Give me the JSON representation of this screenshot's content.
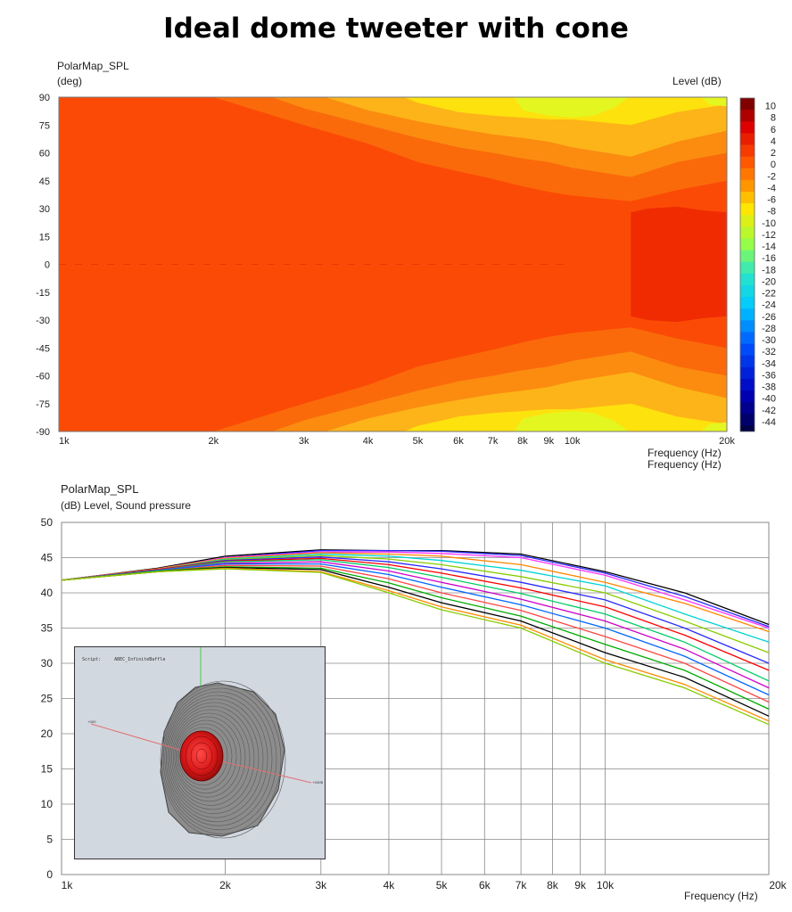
{
  "page_title": "Ideal dome tweeter with cone",
  "colors": {
    "band_0": "#fb4a06",
    "band_m2": "#fa6a0a",
    "band_m4": "#fb8c10",
    "band_m6": "#fdb418",
    "band_m8": "#fde20d",
    "band_m10": "#e4f61f",
    "band_p2": "#f02b02"
  },
  "chart_data": [
    {
      "type": "heatmap",
      "title": "PolarMap_SPL",
      "ylabel_unit": "(deg)",
      "colorbar_label": "Level  (dB)",
      "xlabel": "Frequency  (Hz)",
      "xlabel_overlap": "Frequency  (Hz)",
      "x_scale": "log",
      "xlim": [
        1000,
        20000
      ],
      "ylim": [
        -90,
        90
      ],
      "x_ticks": [
        {
          "v": 1000,
          "l": "1k"
        },
        {
          "v": 2000,
          "l": "2k"
        },
        {
          "v": 3000,
          "l": "3k"
        },
        {
          "v": 4000,
          "l": "4k"
        },
        {
          "v": 5000,
          "l": "5k"
        },
        {
          "v": 6000,
          "l": "6k"
        },
        {
          "v": 7000,
          "l": "7k"
        },
        {
          "v": 8000,
          "l": "8k"
        },
        {
          "v": 9000,
          "l": "9k"
        },
        {
          "v": 10000,
          "l": "10k"
        },
        {
          "v": 20000,
          "l": "20k"
        }
      ],
      "y_ticks": [
        90,
        75,
        60,
        45,
        30,
        15,
        0,
        -15,
        -30,
        -45,
        -60,
        -75,
        -90
      ],
      "colorbar_ticks": [
        10,
        8,
        6,
        4,
        2,
        0,
        -2,
        -4,
        -6,
        -8,
        -10,
        -12,
        -14,
        -16,
        -18,
        -20,
        -22,
        -24,
        -26,
        -28,
        -30,
        -32,
        -34,
        -36,
        -38,
        -40,
        -42,
        -44
      ],
      "contour_boundaries_abs_angle_deg": [
        {
          "level_dB": -2,
          "freq_hz": [
            2000,
            3000,
            4000,
            5000,
            6000,
            7000,
            8000,
            9000,
            10000,
            13000,
            16000,
            20000
          ],
          "angle_deg": [
            90,
            75,
            65,
            55,
            50,
            46,
            42,
            39,
            37,
            34,
            40,
            45
          ]
        },
        {
          "level_dB": -4,
          "freq_hz": [
            2600,
            3000,
            4000,
            5000,
            6000,
            7000,
            8000,
            9000,
            10000,
            13000,
            16000,
            20000
          ],
          "angle_deg": [
            90,
            84,
            75,
            68,
            63,
            60,
            57,
            55,
            52,
            47,
            55,
            60
          ]
        },
        {
          "level_dB": -6,
          "freq_hz": [
            3300,
            4000,
            5000,
            6000,
            7000,
            8000,
            9000,
            10000,
            13000,
            16000,
            20000
          ],
          "angle_deg": [
            90,
            83,
            77,
            73,
            70,
            68,
            66,
            63,
            58,
            66,
            72
          ]
        },
        {
          "level_dB": -8,
          "freq_hz": [
            4700,
            5000,
            6000,
            7000,
            8000,
            9000,
            10000,
            13000,
            16000,
            20000
          ],
          "angle_deg": [
            90,
            87,
            82,
            80,
            79,
            78,
            78,
            75,
            82,
            86
          ]
        },
        {
          "level_dB": -10,
          "freq_hz": [
            7700,
            8000,
            9000,
            10000,
            11000,
            12000,
            12900
          ],
          "angle_deg": [
            90,
            83,
            80,
            79,
            80,
            84,
            90
          ]
        },
        {
          "level_dB": -10,
          "freq_hz": [
            17800,
            18500,
            20000
          ],
          "angle_deg": [
            90,
            86,
            85
          ]
        }
      ],
      "positive_region": {
        "level_dB": 2,
        "freq_hz": [
          13000,
          14000,
          16000,
          18000,
          20000
        ],
        "angle_deg": [
          28,
          30,
          31,
          29,
          28
        ]
      }
    },
    {
      "type": "line",
      "title": "PolarMap_SPL",
      "ylabel": "(dB)  Level, Sound pressure",
      "xlabel": "Frequency  (Hz)",
      "x_scale": "log",
      "xlim": [
        1000,
        20000
      ],
      "ylim": [
        0,
        50
      ],
      "y_ticks": [
        0,
        5,
        10,
        15,
        20,
        25,
        30,
        35,
        40,
        45,
        50
      ],
      "x_ticks": [
        {
          "v": 1000,
          "l": "1k"
        },
        {
          "v": 2000,
          "l": "2k"
        },
        {
          "v": 3000,
          "l": "3k"
        },
        {
          "v": 4000,
          "l": "4k"
        },
        {
          "v": 5000,
          "l": "5k"
        },
        {
          "v": 6000,
          "l": "6k"
        },
        {
          "v": 7000,
          "l": "7k"
        },
        {
          "v": 8000,
          "l": "8k"
        },
        {
          "v": 9000,
          "l": "9k"
        },
        {
          "v": 10000,
          "l": "10k"
        },
        {
          "v": 20000,
          "l": "20k"
        }
      ],
      "x": [
        1000,
        1500,
        2000,
        3000,
        4000,
        5000,
        7000,
        10000,
        14000,
        20000
      ],
      "series": [
        {
          "color": "#000000",
          "values": [
            41.8,
            43.5,
            45.2,
            46.1,
            46.0,
            46.0,
            45.5,
            43.0,
            40.0,
            35.5
          ]
        },
        {
          "color": "#2a2aff",
          "values": [
            41.8,
            43.4,
            45.0,
            46.0,
            46.0,
            45.9,
            45.3,
            42.8,
            39.5,
            35.2
          ]
        },
        {
          "color": "#ff33ff",
          "values": [
            41.8,
            43.4,
            45.0,
            45.8,
            45.8,
            45.6,
            45.0,
            42.5,
            39.0,
            35.0
          ]
        },
        {
          "color": "#ff8800",
          "values": [
            41.8,
            43.4,
            44.9,
            45.7,
            45.5,
            45.2,
            44.0,
            41.5,
            38.5,
            34.5
          ]
        },
        {
          "color": "#00d4d4",
          "values": [
            41.8,
            43.3,
            44.8,
            45.5,
            45.2,
            44.6,
            43.2,
            41.0,
            37.0,
            33.0
          ]
        },
        {
          "color": "#88cc00",
          "values": [
            41.8,
            43.3,
            44.7,
            45.3,
            44.8,
            44.0,
            42.3,
            40.0,
            36.0,
            31.5
          ]
        },
        {
          "color": "#2a2aff",
          "values": [
            41.8,
            43.3,
            44.6,
            45.1,
            44.4,
            43.4,
            41.5,
            39.0,
            35.0,
            30.0
          ]
        },
        {
          "color": "#ff0000",
          "values": [
            41.8,
            43.3,
            44.5,
            44.9,
            44.0,
            42.8,
            40.7,
            38.0,
            34.0,
            29.0
          ]
        },
        {
          "color": "#00cc66",
          "values": [
            41.8,
            43.2,
            44.4,
            44.7,
            43.6,
            42.2,
            39.9,
            37.0,
            33.0,
            27.5
          ]
        },
        {
          "color": "#cc00cc",
          "values": [
            41.8,
            43.2,
            44.2,
            44.4,
            43.1,
            41.5,
            39.1,
            36.0,
            32.0,
            26.5
          ]
        },
        {
          "color": "#0066ff",
          "values": [
            41.8,
            43.2,
            44.1,
            44.1,
            42.6,
            40.8,
            38.3,
            35.0,
            31.0,
            25.5
          ]
        },
        {
          "color": "#ff4444",
          "values": [
            41.8,
            43.1,
            43.9,
            43.8,
            42.0,
            40.0,
            37.5,
            33.8,
            30.0,
            24.5
          ]
        },
        {
          "color": "#00aa00",
          "values": [
            41.8,
            43.1,
            43.7,
            43.5,
            41.4,
            39.3,
            36.7,
            32.7,
            29.0,
            23.5
          ]
        },
        {
          "color": "#000000",
          "values": [
            41.8,
            43.0,
            43.6,
            43.3,
            40.8,
            38.6,
            36.0,
            31.5,
            28.0,
            22.5
          ]
        },
        {
          "color": "#ff8800",
          "values": [
            41.8,
            43.0,
            43.5,
            43.0,
            40.3,
            38.0,
            35.4,
            30.5,
            27.0,
            21.8
          ]
        },
        {
          "color": "#88cc00",
          "values": [
            41.8,
            43.0,
            43.4,
            42.9,
            40.0,
            37.6,
            35.0,
            30.0,
            26.5,
            21.3
          ]
        }
      ],
      "inset": {
        "script_label": "Script:",
        "script_value": "ABEC_InfiniteBaffle",
        "label_left": "+X00",
        "label_right": "+X00B"
      }
    }
  ]
}
